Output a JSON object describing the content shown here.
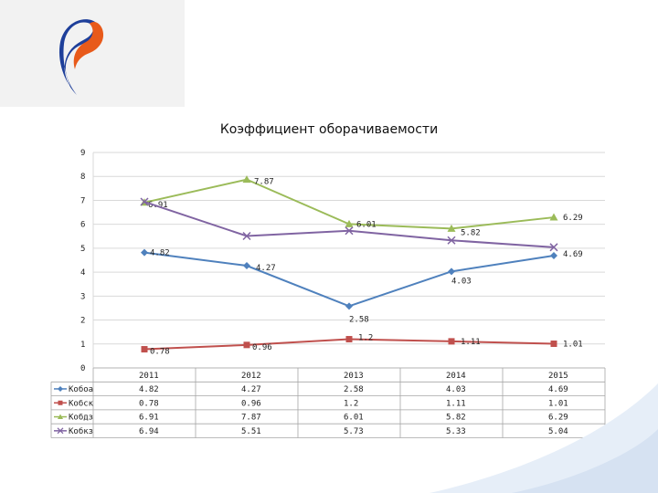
{
  "chart_data": {
    "type": "line",
    "title": "Коэффициент оборачиваемости",
    "categories": [
      "2011",
      "2012",
      "2013",
      "2014",
      "2015"
    ],
    "ylim": [
      0,
      9
    ],
    "yticks": [
      "0",
      "1",
      "2",
      "3",
      "4",
      "5",
      "6",
      "7",
      "8",
      "9"
    ],
    "grid": true,
    "legend": "data-table",
    "series": [
      {
        "name": "Кобоа",
        "color": "#4f81bd",
        "marker": "diamond",
        "values": [
          4.82,
          4.27,
          2.58,
          4.03,
          4.69
        ],
        "labels": [
          "4.82",
          "4.27",
          "2.58",
          "4.03",
          "4.69"
        ]
      },
      {
        "name": "Кобск",
        "color": "#c0504d",
        "marker": "square",
        "values": [
          0.78,
          0.96,
          1.2,
          1.11,
          1.01
        ],
        "labels": [
          "0.78",
          "0.96",
          "1.2",
          "1.11",
          "1.01"
        ]
      },
      {
        "name": "Кобдз",
        "color": "#9bbb59",
        "marker": "triangle",
        "values": [
          6.91,
          7.87,
          6.01,
          5.82,
          6.29
        ],
        "labels": [
          "6.91",
          "7.87",
          "6.01",
          "5.82",
          "6.29"
        ]
      },
      {
        "name": "Кобкз",
        "color": "#8064a2",
        "marker": "x",
        "values": [
          6.94,
          5.51,
          5.73,
          5.33,
          5.04
        ],
        "labels": [
          "6.94",
          "5.51",
          "5.73",
          "5.33",
          "5.04"
        ]
      }
    ]
  },
  "logo": {
    "colors": [
      "#e85a1a",
      "#1e3f9a"
    ],
    "icon": "rostelecom-logo"
  }
}
